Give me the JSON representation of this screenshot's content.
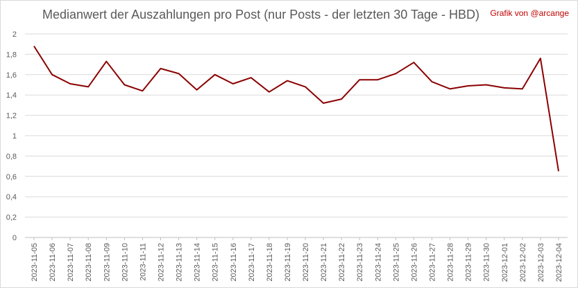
{
  "chart_data": {
    "type": "line",
    "title": "Medianwert der Auszahlungen pro Post (nur Posts - der letzten 30 Tage - HBD)",
    "credit": "Grafik von @arcange",
    "xlabel": "",
    "ylabel": "",
    "ylim": [
      0,
      2
    ],
    "yticks": [
      "0",
      "0,2",
      "0,4",
      "0,6",
      "0,8",
      "1",
      "1,2",
      "1,4",
      "1,6",
      "1,8",
      "2"
    ],
    "grid": true,
    "legend": "none",
    "line_color": "#8b0000",
    "categories": [
      "2023-11-05",
      "2023-11-06",
      "2023-11-07",
      "2023-11-08",
      "2023-11-09",
      "2023-11-10",
      "2023-11-11",
      "2023-11-12",
      "2023-11-13",
      "2023-11-14",
      "2023-11-15",
      "2023-11-16",
      "2023-11-17",
      "2023-11-18",
      "2023-11-19",
      "2023-11-20",
      "2023-11-21",
      "2023-11-22",
      "2023-11-23",
      "2023-11-24",
      "2023-11-25",
      "2023-11-26",
      "2023-11-27",
      "2023-11-28",
      "2023-11-29",
      "2023-11-30",
      "2023-12-01",
      "2023-12-02",
      "2023-12-03",
      "2023-12-04"
    ],
    "values": [
      1.88,
      1.6,
      1.51,
      1.48,
      1.73,
      1.5,
      1.44,
      1.66,
      1.61,
      1.45,
      1.6,
      1.51,
      1.57,
      1.43,
      1.54,
      1.48,
      1.32,
      1.36,
      1.55,
      1.55,
      1.61,
      1.72,
      1.53,
      1.46,
      1.49,
      1.5,
      1.47,
      1.46,
      1.76,
      0.65
    ]
  }
}
